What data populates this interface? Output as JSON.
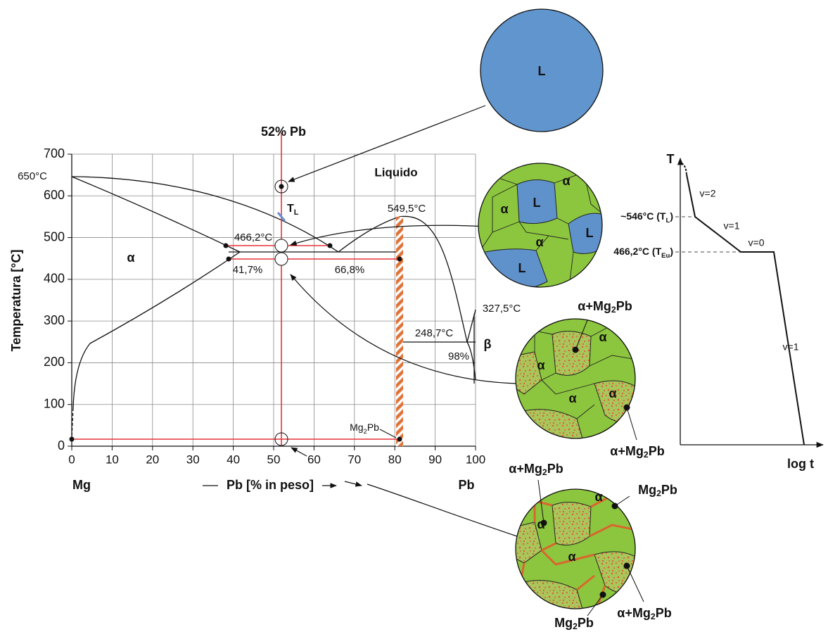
{
  "diagram": {
    "y_axis_title": "Temperatura [°C]",
    "x_axis_title": "Pb [% in peso]",
    "yticks": [
      0,
      100,
      200,
      300,
      400,
      500,
      600,
      700
    ],
    "xticks": [
      0,
      10,
      20,
      30,
      40,
      50,
      60,
      70,
      80,
      90,
      100
    ],
    "x_left": "Mg",
    "x_right": "Pb",
    "composition": "52% Pb",
    "liquid": "Liquido",
    "t_liquidus": [
      "T",
      "L"
    ],
    "melting_mg": "650°C",
    "eutectic_temp": "466,2°C",
    "eutectic_left": "41,7%",
    "eutectic_right": "66,8%",
    "compound_melt": "549,5°C",
    "pb_melt": "327,5°C",
    "eutectic2_temp": "248,7°C",
    "eutectic2_comp": "98%",
    "alpha": "α",
    "beta": "β",
    "compound": [
      "Mg",
      "2",
      "Pb"
    ]
  },
  "micrographs": [
    {
      "labels": [
        "L"
      ]
    },
    {
      "labels": [
        "α",
        "α",
        "L",
        "L",
        "α",
        "L"
      ]
    },
    {
      "labels": [
        [
          "α+Mg",
          "2",
          "Pb"
        ],
        "α",
        "α",
        "α",
        "α",
        [
          "α+Mg",
          "2",
          "Pb"
        ]
      ]
    },
    {
      "labels": [
        [
          "α+Mg",
          "2",
          "Pb"
        ],
        [
          "Mg",
          "2",
          "Pb"
        ],
        "α",
        "α",
        "α",
        [
          "α+Mg",
          "2",
          "Pb"
        ],
        [
          "Mg",
          "2",
          "Pb"
        ]
      ]
    }
  ],
  "cooling_curve": {
    "y_axis": "T",
    "x_axis": "log t",
    "segments": [
      "v=2",
      "v=1",
      "v=0",
      "v=1"
    ],
    "liquidus": [
      "~546°C (T",
      "L",
      ")"
    ],
    "eutectic": [
      "466,2°C (T",
      "Eu",
      ")"
    ]
  }
}
